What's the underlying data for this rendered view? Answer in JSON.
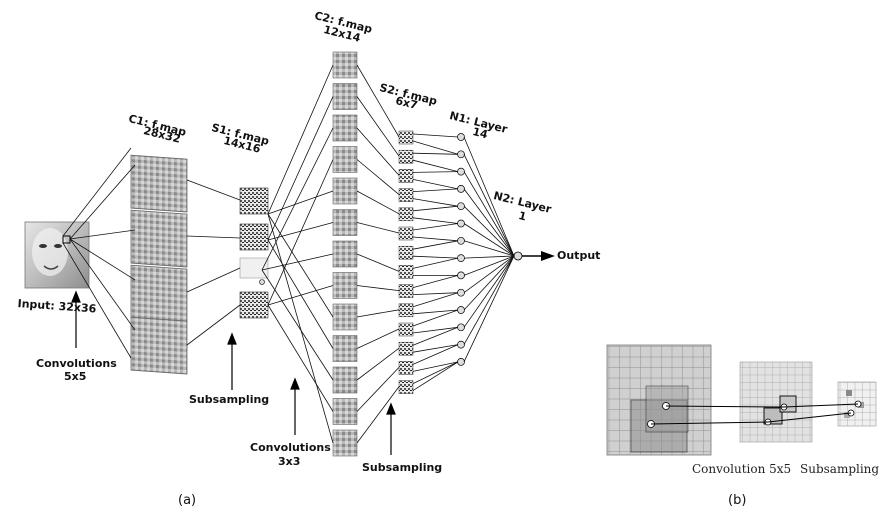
{
  "diagram_a": {
    "input_label": "Input: 32x36",
    "c1_label": "C1: f.map",
    "c1_size": "28x32",
    "s1_label": "S1: f.map",
    "s1_size": "14x16",
    "c2_label": "C2: f.map",
    "c2_size": "12x14",
    "s2_label": "S2: f.map",
    "s2_size": "6x7",
    "n1_label": "N1: Layer",
    "n1_size": "14",
    "n2_label": "N2: Layer",
    "n2_size": "1",
    "output_label": "Output",
    "conv1_label": "Convolutions",
    "conv1_kernel": "5x5",
    "subsampling1_label": "Subsampling",
    "conv2_label": "Convolutions",
    "conv2_kernel": "3x3",
    "subsampling2_label": "Subsampling",
    "caption": "(a)"
  },
  "diagram_b": {
    "convolution_label": "Convolution 5x5",
    "subsampling_label": "Subsampling",
    "caption": "(b)"
  }
}
